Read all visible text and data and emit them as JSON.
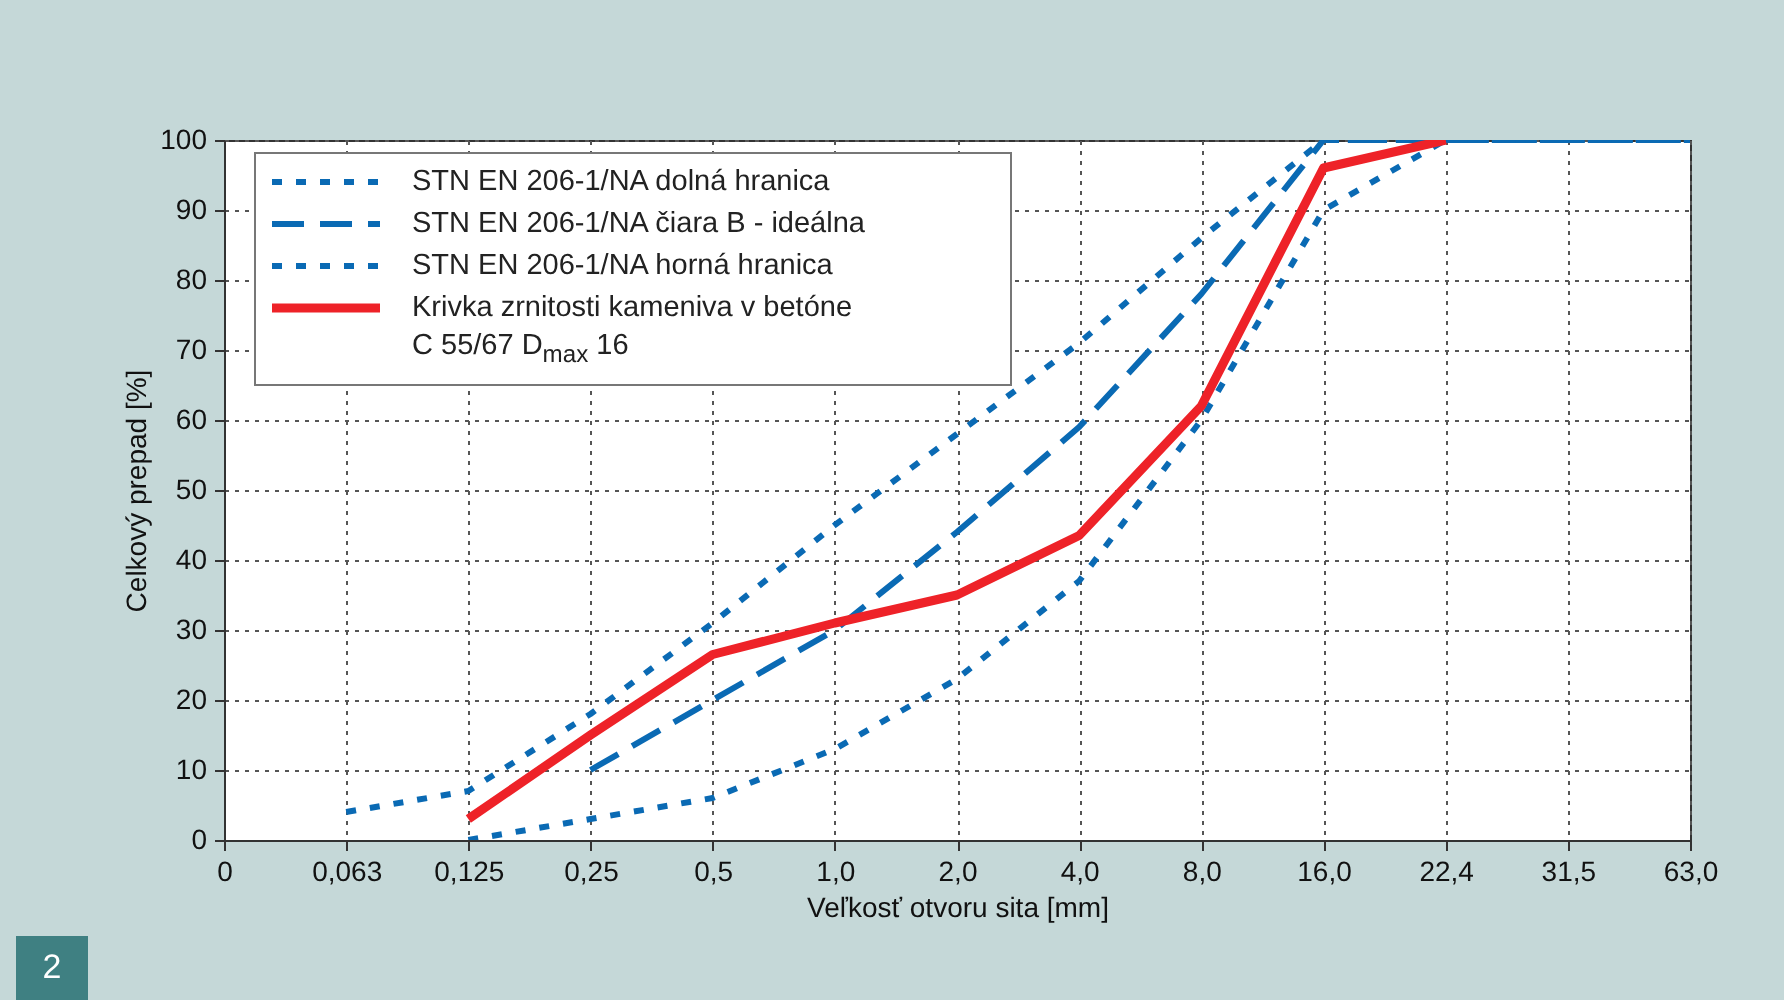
{
  "chart_data": {
    "type": "line",
    "xlabel": "Veľkosť otvoru sita [mm]",
    "ylabel": "Celkový prepad [%]",
    "categories": [
      "0",
      "0,063",
      "0,125",
      "0,25",
      "0,5",
      "1,0",
      "2,0",
      "4,0",
      "8,0",
      "16,0",
      "22,4",
      "31,5",
      "63,0"
    ],
    "ylim": [
      0,
      100
    ],
    "yticks": [
      0,
      10,
      20,
      30,
      40,
      50,
      60,
      70,
      80,
      90,
      100
    ],
    "grid": true,
    "legend": "top left",
    "marker": "none",
    "series": [
      {
        "name": "STN EN 206-1/NA dolná hranica",
        "color": "#0a6ab4",
        "line_style": "dotted",
        "values": [
          null,
          null,
          0,
          3,
          6,
          13,
          23,
          37,
          60,
          90,
          100,
          100,
          100
        ]
      },
      {
        "name": "STN EN 206-1/NA čiara B - ideálna",
        "color": "#0a6ab4",
        "line_style": "dashed",
        "values": [
          null,
          null,
          null,
          10,
          20,
          30,
          44,
          59,
          78,
          100,
          100,
          100,
          100
        ]
      },
      {
        "name": "STN EN 206-1/NA horná hranica",
        "color": "#0a6ab4",
        "line_style": "dotted",
        "values": [
          null,
          4,
          7,
          18,
          31,
          45,
          58,
          71,
          86,
          100,
          100,
          100,
          100
        ]
      },
      {
        "name": "Krivka zrnitosti kameniva v betóne C 55/67 D$_{max}$ 16",
        "color": "#ee2228",
        "line_style": "solid",
        "values": [
          null,
          null,
          3,
          15,
          26.5,
          31,
          35,
          43.5,
          62,
          96,
          100,
          null,
          null
        ]
      }
    ],
    "annotations": [
      "2"
    ]
  }
}
